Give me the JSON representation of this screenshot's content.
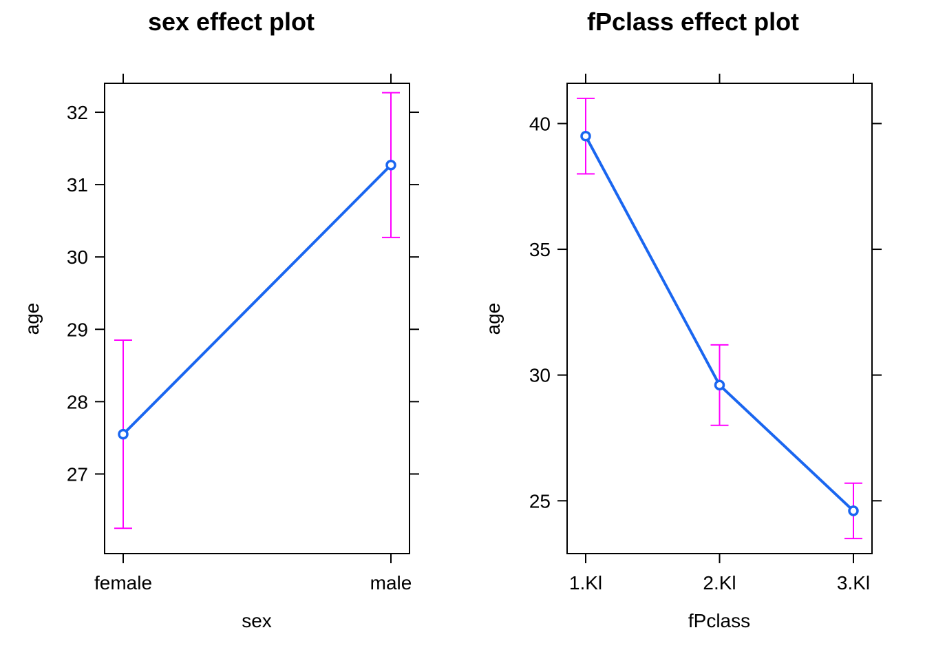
{
  "colors": {
    "line": "#1a66f0",
    "ci": "#ff00ff",
    "axis": "#000000",
    "background": "#ffffff"
  },
  "chart_data": [
    {
      "type": "line",
      "title": "sex effect plot",
      "xlabel": "sex",
      "ylabel": "age",
      "categories": [
        "female",
        "male"
      ],
      "values": [
        27.55,
        31.27
      ],
      "lower": [
        26.25,
        30.27
      ],
      "upper": [
        28.85,
        32.27
      ],
      "ylim": [
        25.9,
        32.4
      ],
      "yticks": [
        27,
        28,
        29,
        30,
        31,
        32
      ],
      "ytick_labels": [
        "27",
        "28",
        "29",
        "30",
        "31",
        "32"
      ],
      "grid": false,
      "legend": "none"
    },
    {
      "type": "line",
      "title": "fPclass effect plot",
      "xlabel": "fPclass",
      "ylabel": "age",
      "categories": [
        "1.Kl",
        "2.Kl",
        "3.Kl"
      ],
      "values": [
        39.5,
        29.6,
        24.6
      ],
      "lower": [
        38.0,
        28.0,
        23.5
      ],
      "upper": [
        41.0,
        31.2,
        25.7
      ],
      "ylim": [
        22.9,
        41.6
      ],
      "yticks": [
        25,
        30,
        35,
        40
      ],
      "ytick_labels": [
        "25",
        "30",
        "35",
        "40"
      ],
      "grid": false,
      "legend": "none"
    }
  ]
}
